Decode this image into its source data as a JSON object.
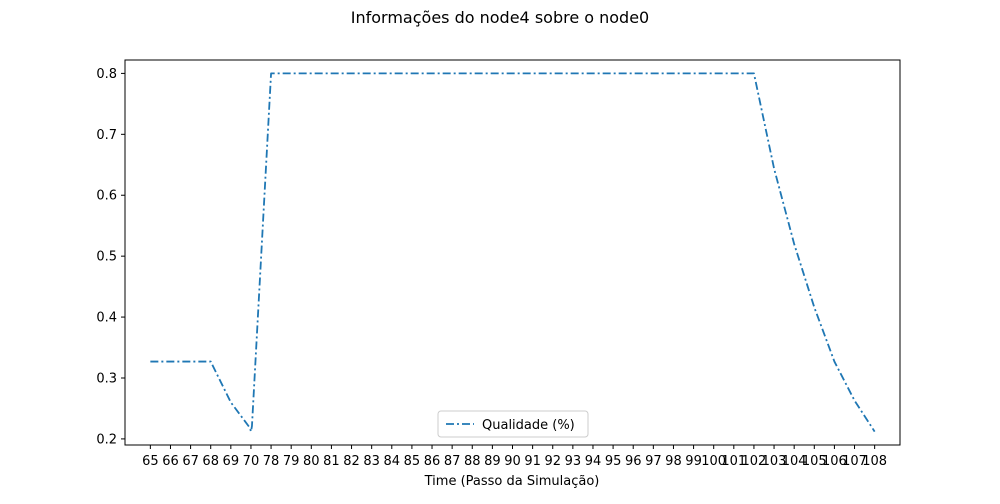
{
  "chart_data": {
    "type": "line",
    "title": "Informações do node4 sobre o node0",
    "xlabel": "Time (Passo da Simulação)",
    "ylabel": "",
    "categories": [
      "65",
      "66",
      "67",
      "68",
      "69",
      "70",
      "78",
      "79",
      "80",
      "81",
      "82",
      "83",
      "84",
      "85",
      "86",
      "87",
      "88",
      "89",
      "90",
      "91",
      "92",
      "93",
      "94",
      "95",
      "96",
      "97",
      "98",
      "99",
      "100",
      "101",
      "102",
      "103",
      "104",
      "105",
      "106",
      "107",
      "108"
    ],
    "series": [
      {
        "name": "Qualidade (%)",
        "color": "#1f77b4",
        "line_style": "dash-dot",
        "points": [
          {
            "x": 0.0,
            "y": 0.327
          },
          {
            "x": 1.0,
            "y": 0.327
          },
          {
            "x": 2.0,
            "y": 0.327
          },
          {
            "x": 3.0,
            "y": 0.327
          },
          {
            "x": 4.0,
            "y": 0.26
          },
          {
            "x": 4.95,
            "y": 0.218
          },
          {
            "x": 5.0,
            "y": 0.212
          },
          {
            "x": 5.05,
            "y": 0.221
          },
          {
            "x": 6.0,
            "y": 0.8
          },
          {
            "x": 7.0,
            "y": 0.8
          },
          {
            "x": 30.0,
            "y": 0.8
          },
          {
            "x": 31.0,
            "y": 0.644
          },
          {
            "x": 32.0,
            "y": 0.52
          },
          {
            "x": 33.0,
            "y": 0.416
          },
          {
            "x": 34.0,
            "y": 0.327
          },
          {
            "x": 35.0,
            "y": 0.263
          },
          {
            "x": 36.0,
            "y": 0.212
          }
        ]
      }
    ],
    "yticks": [
      0.2,
      0.3,
      0.4,
      0.5,
      0.6,
      0.7,
      0.8
    ],
    "ytick_labels": [
      "0.2",
      "0.3",
      "0.4",
      "0.5",
      "0.6",
      "0.7",
      "0.8"
    ],
    "ylim": [
      0.19,
      0.822
    ],
    "grid": false,
    "legend_position": "bottom-center"
  }
}
